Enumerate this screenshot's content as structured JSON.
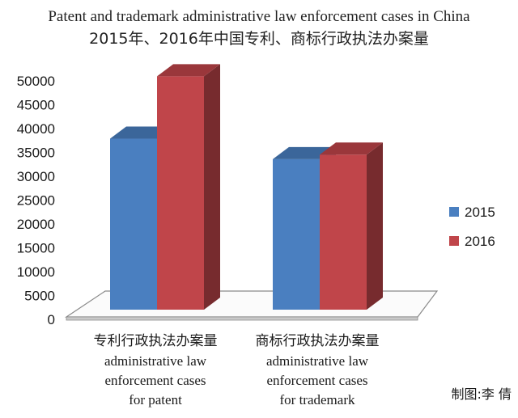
{
  "chart_data": {
    "type": "bar",
    "title": "Patent and trademark administrative law enforcement cases in China",
    "subtitle": "2015年、2016年中国专利、商标行政执法办案量",
    "categories": [
      {
        "zh": "专利行政执法办案量",
        "en": [
          "administrative law",
          "enforcement cases",
          "for patent"
        ]
      },
      {
        "zh": "商标行政执法办案量",
        "en": [
          "administrative law",
          "enforcement cases",
          "for trademark"
        ]
      }
    ],
    "series": [
      {
        "name": "2015",
        "color": "#4a7fc0",
        "values": [
          35844,
          31544
        ]
      },
      {
        "name": "2016",
        "color": "#c0454a",
        "values": [
          48916,
          32500
        ]
      }
    ],
    "y_ticks": [
      "0",
      "5000",
      "10000",
      "15000",
      "20000",
      "25000",
      "30000",
      "35000",
      "40000",
      "45000",
      "50000"
    ],
    "ylim": [
      0,
      50000
    ],
    "legend_position": "right",
    "credit": "制图:李 倩"
  }
}
